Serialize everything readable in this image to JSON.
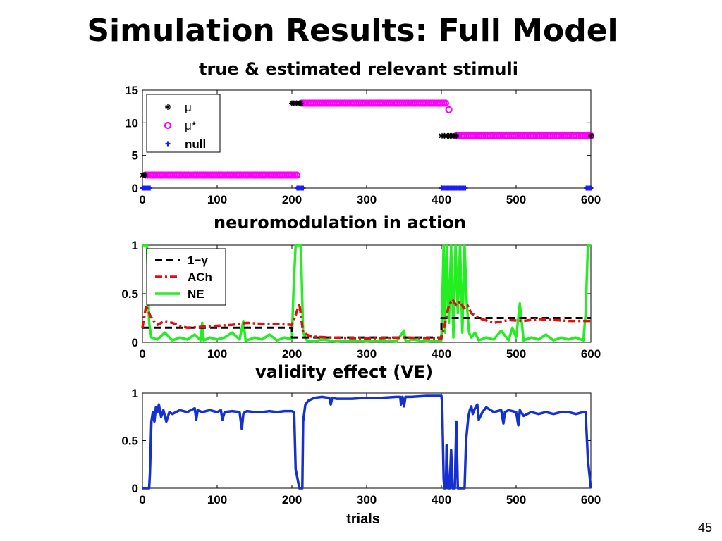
{
  "slide": {
    "title": "Simulation Results: Full Model",
    "page_number": "45"
  },
  "chart_data": [
    {
      "type": "scatter",
      "title": "true & estimated relevant stimuli",
      "xlabel": "",
      "ylabel": "",
      "xlim": [
        0,
        600
      ],
      "ylim": [
        0,
        15
      ],
      "xticks": [
        0,
        100,
        200,
        300,
        400,
        500,
        600
      ],
      "yticks": [
        0,
        5,
        10,
        15
      ],
      "legend": {
        "position": "top-left",
        "entries": [
          "μ",
          "μ*",
          "null"
        ]
      },
      "colors": {
        "mu": "#000000",
        "mu_star": "#ff00ff",
        "null": "#1a1aff"
      },
      "series": [
        {
          "name": "μ",
          "marker": "asterisk",
          "segments": [
            {
              "x_start": 0,
              "x_end": 4,
              "y": 2
            },
            {
              "x_start": 200,
              "x_end": 212,
              "y": 13
            },
            {
              "x_start": 400,
              "x_end": 420,
              "y": 8
            },
            {
              "x_start": 600,
              "x_end": 600,
              "y": 8
            }
          ]
        },
        {
          "name": "μ*",
          "marker": "circle",
          "segments": [
            {
              "x_start": 4,
              "x_end": 207,
              "y": 2
            },
            {
              "x_start": 213,
              "x_end": 407,
              "y": 13
            },
            {
              "x_start": 410,
              "x_end": 410,
              "y": 12
            },
            {
              "x_start": 420,
              "x_end": 600,
              "y": 8
            }
          ]
        },
        {
          "name": "null",
          "marker": "plus",
          "segments": [
            {
              "x_start": 0,
              "x_end": 10,
              "y": 0
            },
            {
              "x_start": 207,
              "x_end": 215,
              "y": 0
            },
            {
              "x_start": 400,
              "x_end": 432,
              "y": 0
            },
            {
              "x_start": 594,
              "x_end": 600,
              "y": 0
            }
          ]
        }
      ]
    },
    {
      "type": "line",
      "title": "neuromodulation in action",
      "xlabel": "",
      "ylabel": "",
      "xlim": [
        0,
        600
      ],
      "ylim": [
        0,
        1
      ],
      "xticks": [
        0,
        100,
        200,
        300,
        400,
        500,
        600
      ],
      "yticks": [
        0,
        0.5,
        1
      ],
      "ytick_labels": [
        "0",
        "0.5",
        "1"
      ],
      "legend": {
        "position": "top-left",
        "entries": [
          "1−γ",
          "ACh",
          "NE"
        ]
      },
      "series": [
        {
          "name": "1−γ",
          "color": "#000000",
          "style": "dashed",
          "x": [
            0,
            200,
            200,
            400,
            400,
            600
          ],
          "y": [
            0.15,
            0.15,
            0.05,
            0.05,
            0.25,
            0.25
          ]
        },
        {
          "name": "ACh",
          "color": "#e01010",
          "style": "dashdot",
          "x": [
            0,
            5,
            10,
            15,
            20,
            30,
            40,
            50,
            60,
            80,
            100,
            120,
            140,
            160,
            180,
            200,
            205,
            210,
            215,
            225,
            250,
            300,
            350,
            400,
            405,
            410,
            415,
            420,
            425,
            430,
            435,
            440,
            450,
            470,
            490,
            510,
            530,
            550,
            570,
            600
          ],
          "y": [
            0.15,
            0.38,
            0.28,
            0.22,
            0.18,
            0.22,
            0.2,
            0.17,
            0.15,
            0.16,
            0.17,
            0.18,
            0.2,
            0.19,
            0.19,
            0.18,
            0.28,
            0.4,
            0.1,
            0.06,
            0.05,
            0.04,
            0.05,
            0.04,
            0.2,
            0.38,
            0.44,
            0.38,
            0.42,
            0.35,
            0.38,
            0.3,
            0.25,
            0.2,
            0.23,
            0.22,
            0.24,
            0.23,
            0.22,
            0.22
          ]
        },
        {
          "name": "NE",
          "color": "#22ee22",
          "style": "solid",
          "x": [
            0,
            3,
            6,
            9,
            12,
            20,
            30,
            40,
            50,
            60,
            70,
            78,
            80,
            82,
            90,
            100,
            110,
            120,
            130,
            135,
            138,
            140,
            150,
            160,
            170,
            180,
            190,
            200,
            202,
            205,
            208,
            212,
            215,
            220,
            230,
            240,
            260,
            280,
            300,
            320,
            340,
            350,
            352,
            355,
            360,
            380,
            400,
            403,
            405,
            407,
            410,
            413,
            416,
            419,
            422,
            425,
            428,
            431,
            434,
            437,
            440,
            445,
            450,
            460,
            470,
            480,
            490,
            495,
            500,
            505,
            510,
            520,
            530,
            540,
            550,
            560,
            570,
            580,
            590,
            593,
            596,
            600
          ],
          "y": [
            1,
            1,
            1,
            0.2,
            0.05,
            0.03,
            0.1,
            0.02,
            0.05,
            0.03,
            0.08,
            0.02,
            0.2,
            0.02,
            0.05,
            0.03,
            0.05,
            0.1,
            0.03,
            0.22,
            0.02,
            0.02,
            0.05,
            0.03,
            0.08,
            0.02,
            0.05,
            0.03,
            0.5,
            1,
            1,
            1,
            0.1,
            0.02,
            0.01,
            0.03,
            0.01,
            0.02,
            0.01,
            0.02,
            0.01,
            0.12,
            0.02,
            0.01,
            0.03,
            0.01,
            0.02,
            1,
            0.1,
            1,
            0.2,
            1,
            0.05,
            1,
            0.3,
            1,
            0.1,
            1,
            0.4,
            0.1,
            0.05,
            0.1,
            0.02,
            0.05,
            0.03,
            0.12,
            0.02,
            0.15,
            0.05,
            0.4,
            0.02,
            0.05,
            0.03,
            0.08,
            0.02,
            0.05,
            0.03,
            0.05,
            0.02,
            0.3,
            1,
            1
          ]
        }
      ]
    },
    {
      "type": "line",
      "title": "validity effect (VE)",
      "xlabel": "trials",
      "ylabel": "",
      "xlim": [
        0,
        600
      ],
      "ylim": [
        0,
        1
      ],
      "xticks": [
        0,
        100,
        200,
        300,
        400,
        500,
        600
      ],
      "yticks": [
        0,
        0.5,
        1
      ],
      "ytick_labels": [
        "0",
        "0.5",
        "1"
      ],
      "series": [
        {
          "name": "",
          "color": "#1530d0",
          "style": "solid",
          "x": [
            0,
            9,
            10,
            12,
            14,
            16,
            18,
            20,
            22,
            25,
            28,
            32,
            36,
            40,
            50,
            60,
            70,
            72,
            74,
            80,
            90,
            100,
            105,
            107,
            110,
            120,
            130,
            133,
            135,
            137,
            140,
            150,
            160,
            170,
            180,
            190,
            200,
            203,
            205,
            210,
            214,
            215,
            218,
            222,
            230,
            240,
            250,
            252,
            254,
            260,
            280,
            300,
            320,
            340,
            345,
            346,
            348,
            350,
            352,
            355,
            360,
            380,
            400,
            401,
            403,
            404,
            406,
            407,
            409,
            411,
            413,
            415,
            418,
            420,
            422,
            425,
            427,
            430,
            431,
            433,
            436,
            438,
            440,
            442,
            445,
            448,
            450,
            455,
            460,
            470,
            480,
            483,
            485,
            490,
            500,
            503,
            505,
            510,
            520,
            530,
            540,
            550,
            560,
            570,
            580,
            590,
            593,
            596,
            600
          ],
          "y": [
            0,
            0,
            0.15,
            0.7,
            0.8,
            0.7,
            0.85,
            0.8,
            0.88,
            0.75,
            0.82,
            0.7,
            0.8,
            0.78,
            0.82,
            0.8,
            0.84,
            0.72,
            0.82,
            0.8,
            0.82,
            0.8,
            0.82,
            0.72,
            0.8,
            0.81,
            0.8,
            0.62,
            0.78,
            0.8,
            0.81,
            0.8,
            0.8,
            0.81,
            0.8,
            0.81,
            0.81,
            0.8,
            0.2,
            0,
            0,
            0.7,
            0.88,
            0.92,
            0.95,
            0.96,
            0.95,
            0.88,
            0.95,
            0.94,
            0.94,
            0.95,
            0.95,
            0.96,
            0.96,
            0.88,
            0.96,
            0.86,
            0.96,
            0.96,
            0.96,
            0.97,
            0.97,
            0.9,
            0.1,
            0,
            0,
            0.45,
            0,
            0,
            0.4,
            0,
            0,
            0.7,
            0,
            0,
            0,
            0,
            0,
            0.5,
            0.75,
            0.82,
            0.86,
            0.78,
            0.84,
            0.88,
            0.72,
            0.8,
            0.85,
            0.8,
            0.82,
            0.68,
            0.8,
            0.82,
            0.8,
            0.66,
            0.82,
            0.76,
            0.8,
            0.78,
            0.8,
            0.78,
            0.8,
            0.8,
            0.78,
            0.8,
            0.8,
            0.3,
            0
          ]
        }
      ]
    }
  ]
}
